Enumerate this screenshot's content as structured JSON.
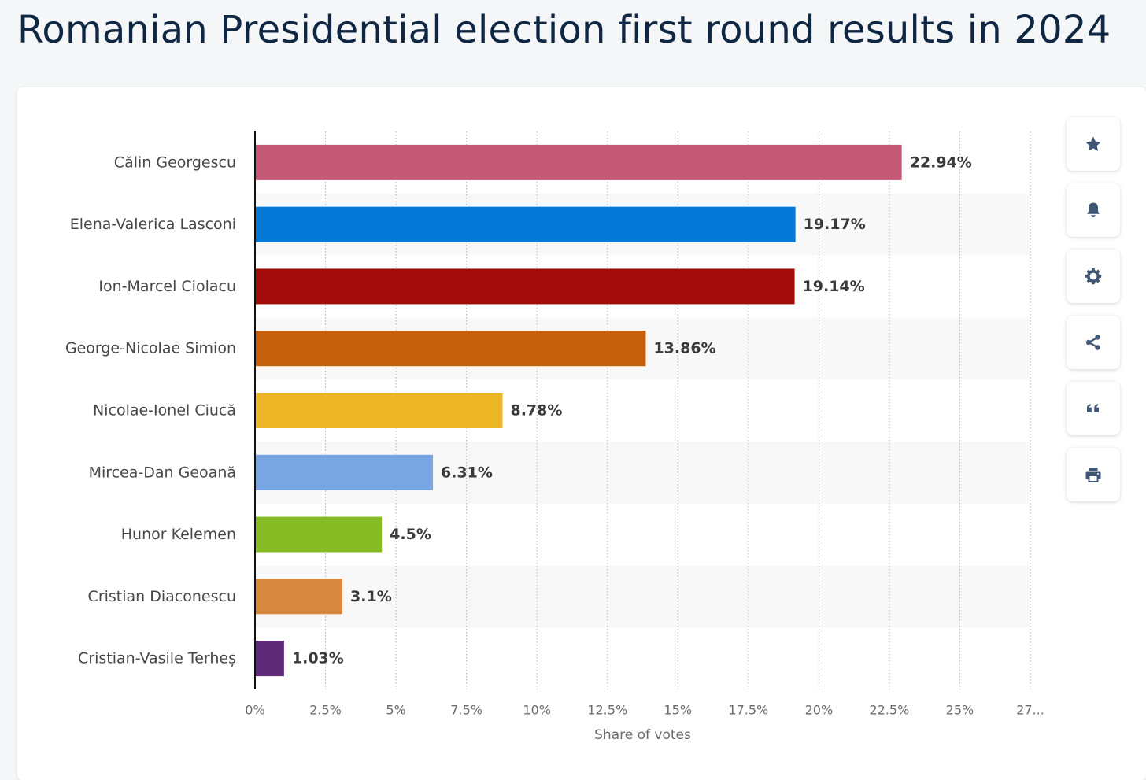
{
  "page": {
    "title": "Romanian Presidential election first round results in 2024"
  },
  "toolbar": {
    "buttons": [
      {
        "name": "favorite",
        "icon": "star-icon"
      },
      {
        "name": "notify",
        "icon": "bell-icon"
      },
      {
        "name": "settings",
        "icon": "gear-icon"
      },
      {
        "name": "share",
        "icon": "share-icon"
      },
      {
        "name": "cite",
        "icon": "quote-icon"
      },
      {
        "name": "print",
        "icon": "printer-icon"
      }
    ],
    "icon_color": "#3f5674"
  },
  "chart_data": {
    "type": "bar",
    "orientation": "horizontal",
    "categories": [
      "Călin Georgescu",
      "Elena-Valerica Lasconi",
      "Ion-Marcel Ciolacu",
      "George-Nicolae Simion",
      "Nicolae-Ionel Ciucă",
      "Mircea-Dan Geoană",
      "Hunor Kelemen",
      "Cristian Diaconescu",
      "Cristian-Vasile Terheș"
    ],
    "values": [
      22.94,
      19.17,
      19.14,
      13.86,
      8.78,
      6.31,
      4.5,
      3.1,
      1.03
    ],
    "value_labels": [
      "22.94%",
      "19.17%",
      "19.14%",
      "13.86%",
      "8.78%",
      "6.31%",
      "4.5%",
      "3.1%",
      "1.03%"
    ],
    "colors": [
      "#c55a78",
      "#0678d8",
      "#a30b0b",
      "#c5610c",
      "#edb626",
      "#79a6e3",
      "#86bb24",
      "#d8883f",
      "#5f2a78"
    ],
    "xlabel": "Share of votes",
    "xlim": [
      0,
      27.5
    ],
    "xticks": [
      0,
      2.5,
      5,
      7.5,
      10,
      12.5,
      15,
      17.5,
      20,
      22.5,
      25,
      27.5
    ],
    "xtick_labels": [
      "0%",
      "2.5%",
      "5%",
      "7.5%",
      "10%",
      "12.5%",
      "15%",
      "17.5%",
      "20%",
      "22.5%",
      "25%",
      "27..."
    ],
    "grid": "vertical dotted",
    "legend": "none"
  }
}
